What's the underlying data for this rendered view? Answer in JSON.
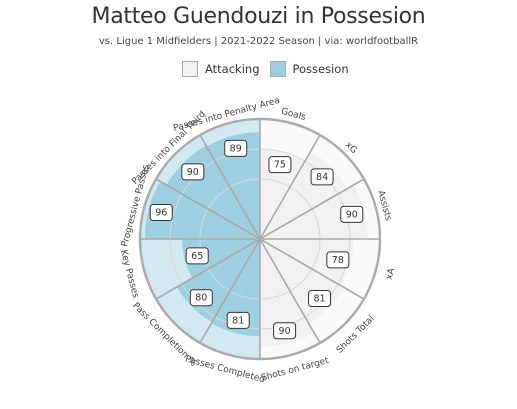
{
  "header": {
    "title": "Matteo Guendouzi in Possesion",
    "subtitle": "vs. Ligue 1 Midfielders | 2021-2022 Season | via: worldfootballR"
  },
  "colors": {
    "attacking": "#f2f2f2",
    "possesion": "#9ecfe0",
    "grid": "#aaaaaa"
  },
  "chart_data": {
    "type": "pie",
    "legend": [
      {
        "name": "Attacking",
        "color": "#f2f2f2"
      },
      {
        "name": "Possesion",
        "color": "#9ecfe0"
      }
    ],
    "legend_position": "top",
    "rlim": [
      0,
      100
    ],
    "categories": [
      "Goals",
      "xG",
      "Assists",
      "xA",
      "Shots Total",
      "Shots on target",
      "Passes Completed",
      "Pass Completion %",
      "Key Passes",
      "Progressive Passes",
      "Passes into Final Third",
      "Passes into Penalty Area"
    ],
    "values": [
      75,
      84,
      90,
      78,
      81,
      90,
      81,
      80,
      65,
      96,
      90,
      89
    ],
    "groups": [
      "Attacking",
      "Attacking",
      "Attacking",
      "Attacking",
      "Attacking",
      "Attacking",
      "Possesion",
      "Possesion",
      "Possesion",
      "Possesion",
      "Possesion",
      "Possesion"
    ]
  }
}
